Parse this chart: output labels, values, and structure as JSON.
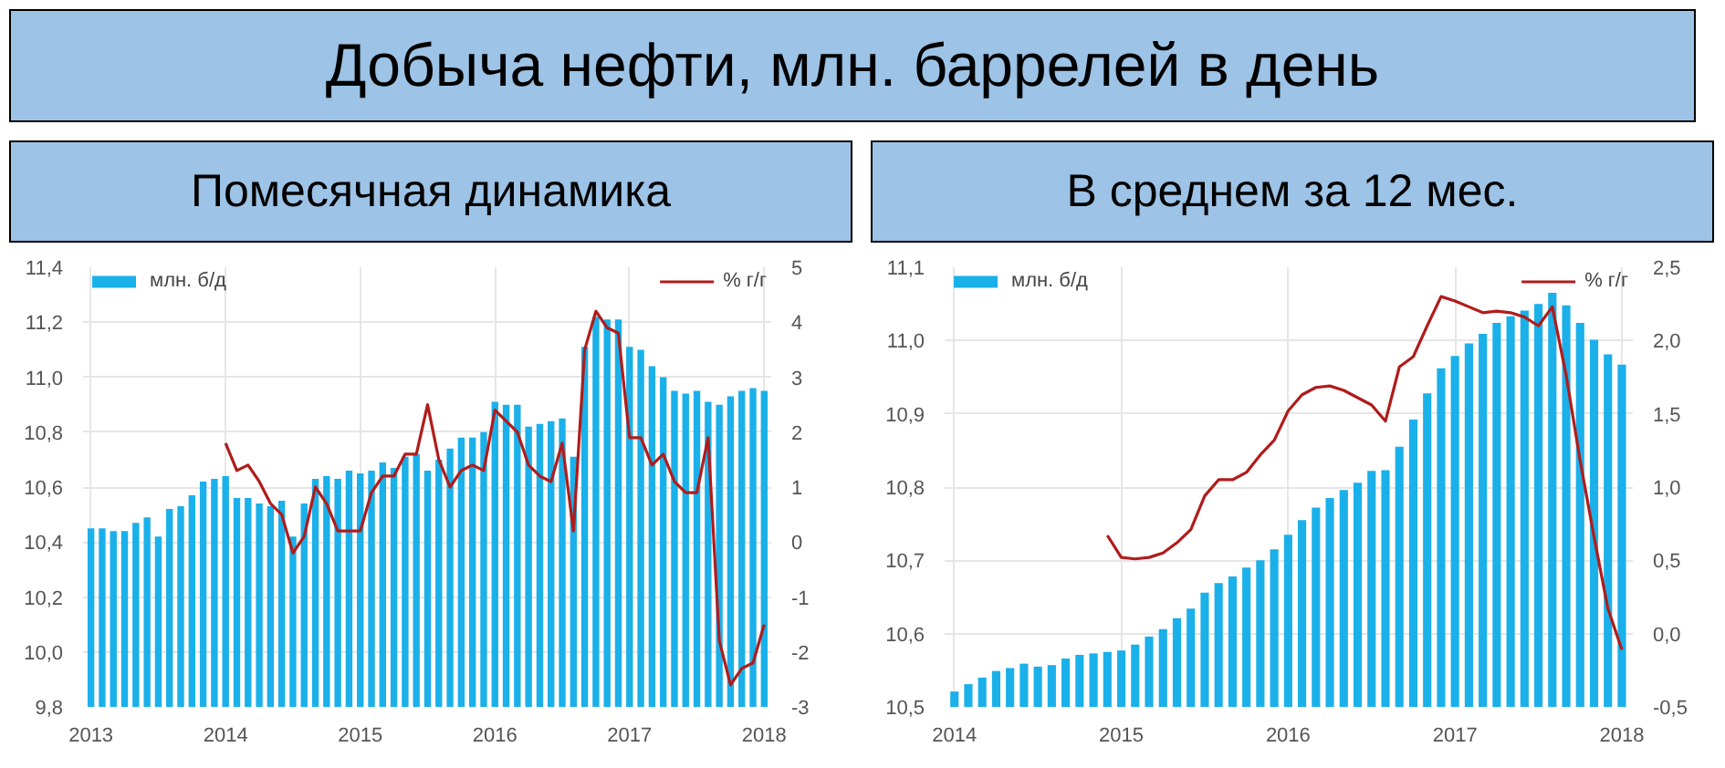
{
  "chart_data": [
    {
      "type": "bar",
      "title": "Добыча нефти, млн. баррелей в день",
      "subtitle": "Помесячная динамика",
      "x": [
        "2013-01",
        "2013-02",
        "2013-03",
        "2013-04",
        "2013-05",
        "2013-06",
        "2013-07",
        "2013-08",
        "2013-09",
        "2013-10",
        "2013-11",
        "2013-12",
        "2014-01",
        "2014-02",
        "2014-03",
        "2014-04",
        "2014-05",
        "2014-06",
        "2014-07",
        "2014-08",
        "2014-09",
        "2014-10",
        "2014-11",
        "2014-12",
        "2015-01",
        "2015-02",
        "2015-03",
        "2015-04",
        "2015-05",
        "2015-06",
        "2015-07",
        "2015-08",
        "2015-09",
        "2015-10",
        "2015-11",
        "2015-12",
        "2016-01",
        "2016-02",
        "2016-03",
        "2016-04",
        "2016-05",
        "2016-06",
        "2016-07",
        "2016-08",
        "2016-09",
        "2016-10",
        "2016-11",
        "2016-12",
        "2017-01",
        "2017-02",
        "2017-03",
        "2017-04",
        "2017-05",
        "2017-06",
        "2017-07",
        "2017-08",
        "2017-09",
        "2017-10",
        "2017-11",
        "2017-12",
        "2018-01"
      ],
      "series": [
        {
          "name": "млн. б/д",
          "color": "#1ab0ea",
          "values": [
            10.45,
            10.45,
            10.44,
            10.44,
            10.47,
            10.49,
            10.42,
            10.52,
            10.53,
            10.57,
            10.62,
            10.63,
            10.64,
            10.56,
            10.56,
            10.54,
            10.53,
            10.55,
            10.42,
            10.54,
            10.63,
            10.64,
            10.63,
            10.66,
            10.65,
            10.66,
            10.69,
            10.67,
            10.71,
            10.72,
            10.66,
            10.7,
            10.74,
            10.78,
            10.78,
            10.8,
            10.91,
            10.9,
            10.9,
            10.82,
            10.83,
            10.84,
            10.85,
            10.71,
            11.11,
            11.22,
            11.21,
            11.21,
            11.11,
            11.1,
            11.04,
            11.0,
            10.95,
            10.94,
            10.95,
            10.91,
            10.9,
            10.93,
            10.95,
            10.96,
            10.95
          ]
        },
        {
          "name": "% г/г",
          "type": "line",
          "axis": "y2",
          "color": "#b01c1c",
          "values": [
            null,
            null,
            null,
            null,
            null,
            null,
            null,
            null,
            null,
            null,
            null,
            null,
            1.8,
            1.3,
            1.4,
            1.1,
            0.7,
            0.5,
            -0.2,
            0.1,
            1.0,
            0.7,
            0.2,
            0.2,
            0.2,
            0.9,
            1.2,
            1.2,
            1.6,
            1.6,
            2.5,
            1.5,
            1.0,
            1.3,
            1.4,
            1.3,
            2.4,
            2.2,
            2.0,
            1.4,
            1.2,
            1.1,
            1.8,
            0.2,
            3.5,
            4.2,
            3.9,
            3.8,
            1.9,
            1.9,
            1.4,
            1.6,
            1.1,
            0.9,
            0.9,
            1.9,
            -1.8,
            -2.6,
            -2.3,
            -2.2,
            -1.5
          ]
        }
      ],
      "xlim": [
        "2012-12-10",
        "2018-01-20"
      ],
      "xticks": [
        "2013",
        "2014",
        "2015",
        "2016",
        "2017",
        "2018"
      ],
      "ylim": [
        9.8,
        11.4
      ],
      "yticks": [
        {
          "value": 9.8,
          "label": "9,8"
        },
        {
          "value": 10.0,
          "label": "10,0"
        },
        {
          "value": 10.2,
          "label": "10,2"
        },
        {
          "value": 10.4,
          "label": "10,4"
        },
        {
          "value": 10.6,
          "label": "10,6"
        },
        {
          "value": 10.8,
          "label": "10,8"
        },
        {
          "value": 11.0,
          "label": "11,0"
        },
        {
          "value": 11.2,
          "label": "11,2"
        },
        {
          "value": 11.4,
          "label": "11,4"
        }
      ],
      "y2lim": [
        -3,
        5
      ],
      "y2ticks": [
        -3,
        -2,
        -1,
        0,
        1,
        2,
        3,
        4,
        5
      ],
      "grid": true,
      "legend": "top"
    },
    {
      "type": "bar",
      "subtitle": "В среднем за 12 мес.",
      "x": [
        "2014-01",
        "2014-02",
        "2014-03",
        "2014-04",
        "2014-05",
        "2014-06",
        "2014-07",
        "2014-08",
        "2014-09",
        "2014-10",
        "2014-11",
        "2014-12",
        "2015-01",
        "2015-02",
        "2015-03",
        "2015-04",
        "2015-05",
        "2015-06",
        "2015-07",
        "2015-08",
        "2015-09",
        "2015-10",
        "2015-11",
        "2015-12",
        "2016-01",
        "2016-02",
        "2016-03",
        "2016-04",
        "2016-05",
        "2016-06",
        "2016-07",
        "2016-08",
        "2016-09",
        "2016-10",
        "2016-11",
        "2016-12",
        "2017-01",
        "2017-02",
        "2017-03",
        "2017-04",
        "2017-05",
        "2017-06",
        "2017-07",
        "2017-08",
        "2017-09",
        "2017-10",
        "2017-11",
        "2017-12",
        "2018-01"
      ],
      "series": [
        {
          "name": "млн. б/д",
          "color": "#1ab0ea",
          "values": [
            10.521,
            10.531,
            10.54,
            10.549,
            10.553,
            10.559,
            10.555,
            10.557,
            10.566,
            10.571,
            10.573,
            10.575,
            10.577,
            10.585,
            10.596,
            10.606,
            10.621,
            10.634,
            10.656,
            10.669,
            10.678,
            10.69,
            10.7,
            10.715,
            10.735,
            10.755,
            10.772,
            10.785,
            10.796,
            10.806,
            10.822,
            10.823,
            10.855,
            10.892,
            10.928,
            10.962,
            10.979,
            10.996,
            11.009,
            11.024,
            11.033,
            11.041,
            11.05,
            11.065,
            11.048,
            11.024,
            11.001,
            10.981,
            10.967
          ]
        },
        {
          "name": "% г/г",
          "type": "line",
          "axis": "y2",
          "color": "#b01c1c",
          "values": [
            null,
            null,
            null,
            null,
            null,
            null,
            null,
            null,
            null,
            null,
            null,
            0.67,
            0.52,
            0.51,
            0.52,
            0.55,
            0.62,
            0.71,
            0.94,
            1.05,
            1.05,
            1.1,
            1.22,
            1.32,
            1.52,
            1.63,
            1.68,
            1.69,
            1.66,
            1.61,
            1.56,
            1.45,
            1.82,
            1.89,
            2.1,
            2.3,
            2.27,
            2.23,
            2.19,
            2.2,
            2.19,
            2.16,
            2.1,
            2.23,
            1.76,
            1.18,
            0.66,
            0.17,
            -0.11
          ]
        }
      ],
      "xlim": [
        "2013-12-10",
        "2018-01-25"
      ],
      "xticks": [
        "2014",
        "2015",
        "2016",
        "2017",
        "2018"
      ],
      "ylim": [
        10.5,
        11.1
      ],
      "yticks": [
        {
          "value": 10.5,
          "label": "10,5"
        },
        {
          "value": 10.6,
          "label": "10,6"
        },
        {
          "value": 10.7,
          "label": "10,7"
        },
        {
          "value": 10.8,
          "label": "10,8"
        },
        {
          "value": 10.9,
          "label": "10,9"
        },
        {
          "value": 11.0,
          "label": "11,0"
        },
        {
          "value": 11.1,
          "label": "11,1"
        }
      ],
      "y2lim": [
        -0.5,
        2.5
      ],
      "y2ticks": [
        {
          "value": -0.5,
          "label": "-0,5"
        },
        {
          "value": 0.0,
          "label": "0,0"
        },
        {
          "value": 0.5,
          "label": "0,5"
        },
        {
          "value": 1.0,
          "label": "1,0"
        },
        {
          "value": 1.5,
          "label": "1,5"
        },
        {
          "value": 2.0,
          "label": "2,0"
        },
        {
          "value": 2.5,
          "label": "2,5"
        }
      ],
      "grid": true,
      "legend": "top"
    }
  ]
}
